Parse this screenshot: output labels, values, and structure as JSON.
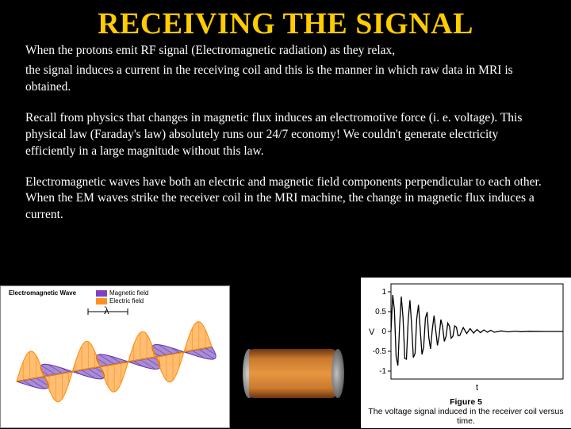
{
  "title": "RECEIVING THE SIGNAL",
  "para1": "When the protons emit RF signal (Electromagnetic radiation) as they relax,",
  "para2": "the signal induces a current in the receiving coil and this is the manner in which raw data in MRI is obtained.",
  "para3": "Recall from physics that changes in magnetic flux induces an electromotive force (i. e. voltage). This physical law (Faraday's law) absolutely runs our 24/7 economy! We couldn't generate electricity efficiently in a large magnitude without this law.",
  "para4": "Electromagnetic waves have both an electric and magnetic field components perpendicular to each other. When the EM waves strike the receiver coil in the MRI machine, the change in magnetic flux induces a current.",
  "em_diagram": {
    "title": "Electromagnetic Wave",
    "lambda": "λ",
    "legend": [
      {
        "label": "Magnetic field",
        "color": "#8040c0"
      },
      {
        "label": "Electric field",
        "color": "#ff9020"
      }
    ],
    "magnetic_color": "#6030b0",
    "electric_color": "#ff8800",
    "axis_color": "#000000",
    "background": "#ffffff"
  },
  "coil": {
    "body_color": "#c97a2e",
    "end_color": "#909090"
  },
  "signal_chart": {
    "type": "line",
    "background": "#ffffff",
    "line_color": "#000000",
    "axis_color": "#000000",
    "ylim": [
      -1.2,
      1.2
    ],
    "yticks": [
      -1,
      -0.5,
      0,
      0.5,
      1
    ],
    "ytick_labels": [
      "-1",
      "-0.5",
      "0",
      "0.5",
      "1"
    ],
    "xlabel": "t",
    "ylabel": "V",
    "caption_bold": "Figure 5",
    "caption": "The voltage signal induced in the receiver coil versus time.",
    "data": {
      "t": [
        0,
        0.05,
        0.1,
        0.15,
        0.2,
        0.25,
        0.3,
        0.35,
        0.4,
        0.45,
        0.5,
        0.55,
        0.6,
        0.65,
        0.7,
        0.75,
        0.8,
        0.85,
        0.9,
        0.95,
        1,
        1.05,
        1.1,
        1.15,
        1.2,
        1.25,
        1.3,
        1.35,
        1.4,
        1.45,
        1.5,
        1.55,
        1.6,
        1.65,
        1.7,
        1.75,
        1.8,
        1.85,
        1.9,
        1.95,
        2,
        2.1,
        2.2,
        2.3,
        2.4,
        2.5,
        2.6,
        2.7,
        2.8,
        2.9,
        3,
        3.2,
        3.4,
        3.6,
        3.8,
        4,
        4.5,
        5
      ],
      "v": [
        0,
        0.92,
        0.55,
        -0.63,
        -0.86,
        0.16,
        0.88,
        0.35,
        -0.68,
        -0.7,
        0.28,
        0.79,
        0.18,
        -0.66,
        -0.55,
        0.33,
        0.67,
        0.05,
        -0.58,
        -0.4,
        0.33,
        0.49,
        -0.15,
        -0.44,
        0.05,
        0.4,
        0.04,
        -0.35,
        -0.1,
        0.3,
        0.12,
        -0.25,
        -0.13,
        0.21,
        0.13,
        -0.17,
        -0.12,
        0.14,
        0.11,
        -0.11,
        -0.1,
        0.1,
        -0.05,
        0.07,
        -0.04,
        0.05,
        -0.03,
        0.04,
        -0.02,
        0.03,
        -0.02,
        0.015,
        -0.01,
        0.008,
        -0.005,
        0.004,
        0.001,
        0
      ]
    }
  }
}
